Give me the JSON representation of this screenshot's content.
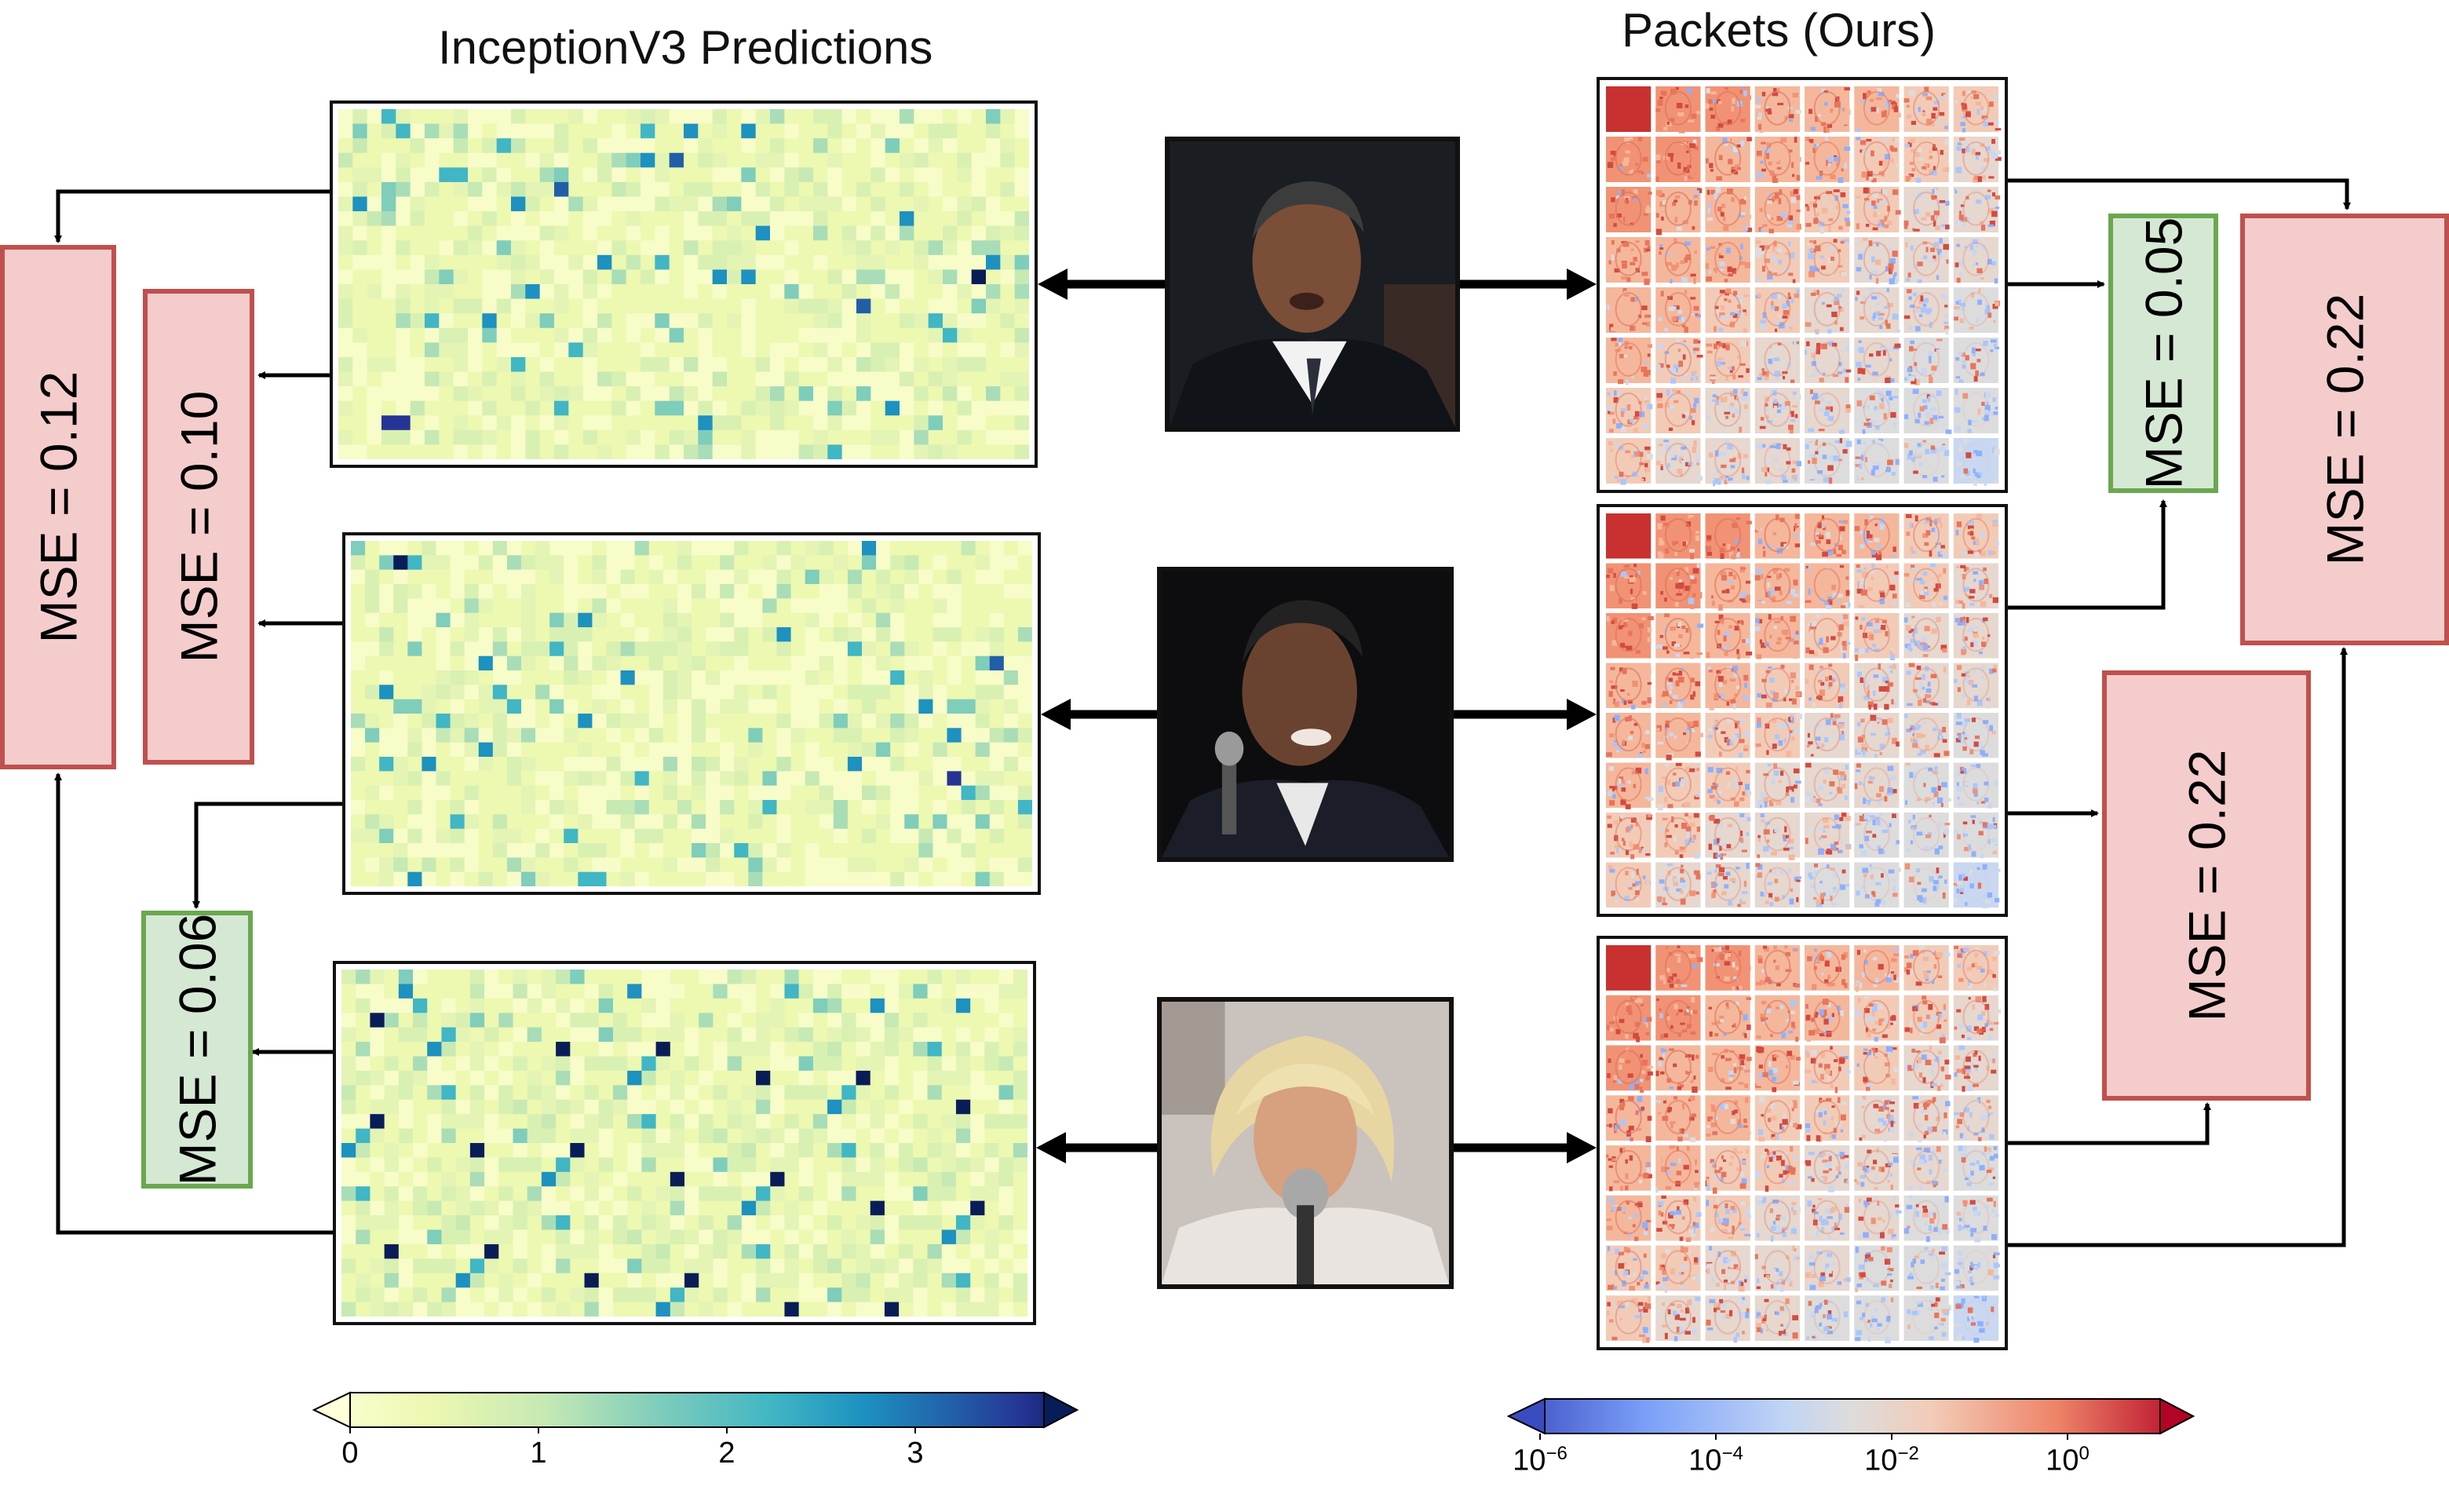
{
  "titles": {
    "left": "InceptionV3 Predictions",
    "right": "Packets (Ours)"
  },
  "mse_boxes": [
    {
      "label": "MSE = 0.12",
      "status": "red"
    },
    {
      "label": "MSE = 0.10",
      "status": "red"
    },
    {
      "label": "MSE = 0.06",
      "status": "green"
    },
    {
      "label": "MSE = 0.05",
      "status": "green"
    },
    {
      "label": "MSE = 0.22",
      "status": "red"
    },
    {
      "label": "MSE = 0.22",
      "status": "red"
    }
  ],
  "colorbars": {
    "inception": {
      "colormap": "YlGnBu",
      "ticks": [
        "0",
        "1",
        "2",
        "3"
      ]
    },
    "packets": {
      "colormap": "coolwarm (log scale)",
      "ticks": [
        {
          "base": "10",
          "exp": "−6"
        },
        {
          "base": "10",
          "exp": "−4"
        },
        {
          "base": "10",
          "exp": "−2"
        },
        {
          "base": "10",
          "exp": "0"
        }
      ]
    }
  },
  "colors": {
    "mse_red_fill": "#f5cccc",
    "mse_red_border": "#c0504d",
    "mse_green_fill": "#d5e8d4",
    "mse_green_border": "#6aa84f",
    "arrow": "#000000"
  },
  "photos": [
    "face-photo-1",
    "face-photo-2",
    "face-photo-3"
  ]
}
